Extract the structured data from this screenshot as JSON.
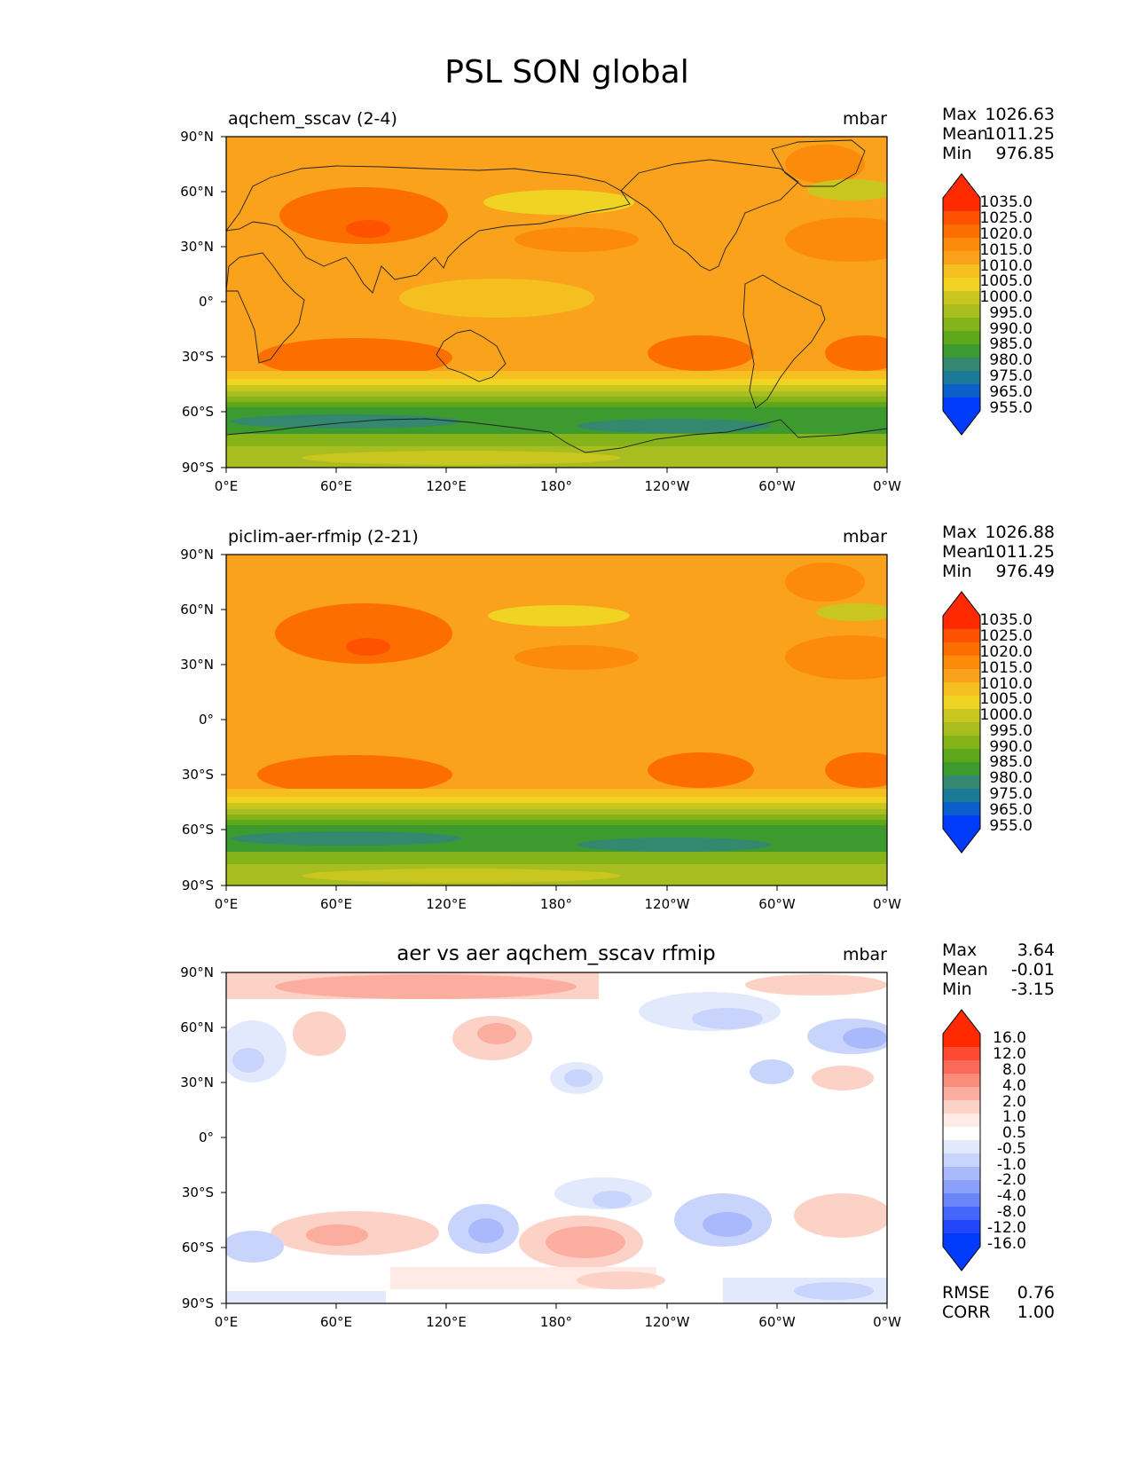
{
  "chart_data": {
    "type": "heatmap",
    "suptitle": "PSL SON global",
    "lon_ticks": [
      "0°E",
      "60°E",
      "120°E",
      "180°",
      "120°W",
      "60°W",
      "0°W"
    ],
    "lat_ticks": [
      "90°N",
      "60°N",
      "30°N",
      "0°",
      "30°S",
      "60°S",
      "90°S"
    ],
    "xlim": [
      0,
      360
    ],
    "ylim": [
      -90,
      90
    ],
    "panels": [
      {
        "name": "test",
        "title_left": "aqchem_sscav (2-4)",
        "title_center": "",
        "units": "mbar",
        "stats": [
          {
            "label": "Max",
            "value": "1026.63"
          },
          {
            "label": "Mean",
            "value": "1011.25"
          },
          {
            "label": "Min",
            "value": "976.85"
          }
        ],
        "colorbar_labels": [
          "1035.0",
          "1025.0",
          "1020.0",
          "1015.0",
          "1010.0",
          "1005.0",
          "1000.0",
          "995.0",
          "990.0",
          "985.0",
          "980.0",
          "975.0",
          "965.0",
          "955.0"
        ],
        "colors": [
          "#ff2a00",
          "#fe5200",
          "#fd6e00",
          "#fc8b0b",
          "#faa21b",
          "#f6bf20",
          "#f1d423",
          "#c9c71f",
          "#a8bd20",
          "#84b419",
          "#5ea71b",
          "#3d9a2e",
          "#33886f",
          "#1b7a98",
          "#0a5fcb",
          "#003bf9"
        ],
        "top_color": "#ff2a00",
        "bottom_color": "#003bf9"
      },
      {
        "name": "reference",
        "title_left": "piclim-aer-rfmip (2-21)",
        "title_center": "",
        "units": "mbar",
        "stats": [
          {
            "label": "Max",
            "value": "1026.88"
          },
          {
            "label": "Mean",
            "value": "1011.25"
          },
          {
            "label": "Min",
            "value": "976.49"
          }
        ],
        "colorbar_labels": [
          "1035.0",
          "1025.0",
          "1020.0",
          "1015.0",
          "1010.0",
          "1005.0",
          "1000.0",
          "995.0",
          "990.0",
          "985.0",
          "980.0",
          "975.0",
          "965.0",
          "955.0"
        ],
        "colors": [
          "#ff2a00",
          "#fe5200",
          "#fd6e00",
          "#fc8b0b",
          "#faa21b",
          "#f6bf20",
          "#f1d423",
          "#c9c71f",
          "#a8bd20",
          "#84b419",
          "#5ea71b",
          "#3d9a2e",
          "#33886f",
          "#1b7a98",
          "#0a5fcb",
          "#003bf9"
        ],
        "top_color": "#ff2a00",
        "bottom_color": "#003bf9"
      },
      {
        "name": "difference",
        "title_left": "",
        "title_center": "aer vs aer aqchem_sscav rfmip",
        "units": "mbar",
        "stats": [
          {
            "label": "Max",
            "value": "3.64"
          },
          {
            "label": "Mean",
            "value": "-0.01"
          },
          {
            "label": "Min",
            "value": "-3.15"
          }
        ],
        "extra_stats": [
          {
            "label": "RMSE",
            "value": "0.76"
          },
          {
            "label": "CORR",
            "value": "1.00"
          }
        ],
        "colorbar_labels": [
          "16.0",
          "12.0",
          "8.0",
          "4.0",
          "2.0",
          "1.0",
          "0.5",
          "-0.5",
          "-1.0",
          "-2.0",
          "-4.0",
          "-8.0",
          "-12.0",
          "-16.0"
        ],
        "colors": [
          "#ff2a00",
          "#fd4a30",
          "#fb6a58",
          "#fa8c7c",
          "#fbada0",
          "#fcd1c6",
          "#ffeae5",
          "#ffffff",
          "#e3e9fd",
          "#c9d4fc",
          "#aab9fb",
          "#8aa0fa",
          "#6a86fa",
          "#4566fa",
          "#2446fb",
          "#003bf9"
        ],
        "top_color": "#ff2a00",
        "bottom_color": "#003bf9"
      }
    ]
  }
}
